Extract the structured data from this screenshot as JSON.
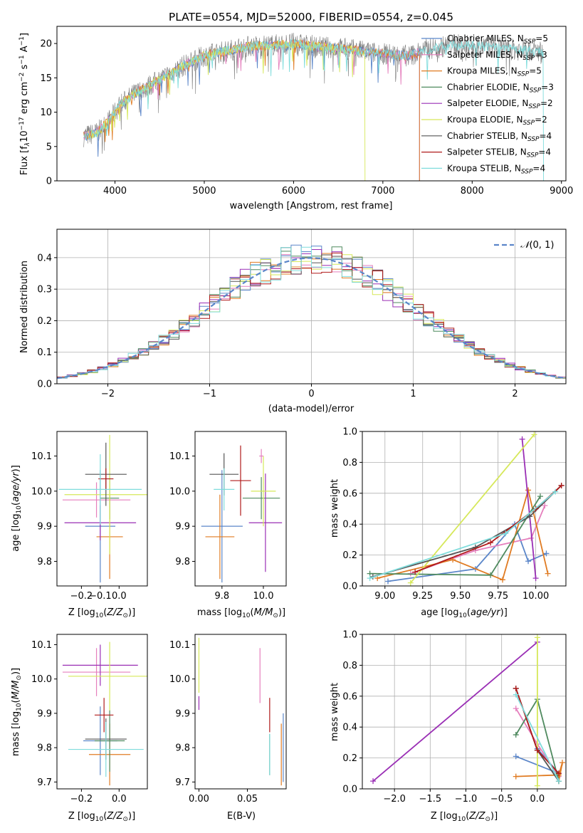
{
  "figure_title": "PLATE=0554, MJD=52000, FIBERID=0554, z=0.045",
  "colors": {
    "Chabrier MILES": "#5b86c9",
    "Salpeter MILES": "#e57fbd",
    "Kroupa MILES": "#e07b22",
    "Chabrier ELODIE": "#4f8a5f",
    "Salpeter ELODIE": "#9a2fb5",
    "Kroupa ELODIE": "#d6e85a",
    "Chabrier STELIB": "#555555",
    "Salpeter STELIB": "#b01a1a",
    "Kroupa STELIB": "#7fdcdc"
  },
  "chart_data": [
    {
      "id": "spectrum",
      "type": "line",
      "title": "PLATE=0554, MJD=52000, FIBERID=0554, z=0.045",
      "xlabel": "wavelength [Angstrom, rest frame]",
      "ylabel_parts": [
        "Flux [f",
        "λ",
        "10",
        "−17",
        " erg cm",
        "−2",
        " s",
        "−1",
        " A",
        "−1",
        "]"
      ],
      "xlim": [
        3350,
        9050
      ],
      "ylim": [
        0,
        22.5
      ],
      "xticks": [
        4000,
        5000,
        6000,
        7000,
        8000,
        9000
      ],
      "yticks": [
        0,
        5,
        10,
        15,
        20
      ],
      "legend_position": "right",
      "legend": [
        {
          "label": "Chabrier MILES, N",
          "sub": "SSP",
          "suffix": "=5"
        },
        {
          "label": "Salpeter MILES, N",
          "sub": "SSP",
          "suffix": "=3"
        },
        {
          "label": "Kroupa MILES, N",
          "sub": "SSP",
          "suffix": "=5"
        },
        {
          "label": "Chabrier ELODIE, N",
          "sub": "SSP",
          "suffix": "=3"
        },
        {
          "label": "Salpeter ELODIE, N",
          "sub": "SSP",
          "suffix": "=2"
        },
        {
          "label": "Kroupa ELODIE, N",
          "sub": "SSP",
          "suffix": "=2"
        },
        {
          "label": "Chabrier STELIB, N",
          "sub": "SSP",
          "suffix": "=4"
        },
        {
          "label": "Salpeter STELIB, N",
          "sub": "SSP",
          "suffix": "=4"
        },
        {
          "label": "Kroupa STELIB, N",
          "sub": "SSP",
          "suffix": "=4"
        }
      ],
      "continuum_points": [
        [
          3650,
          6.5
        ],
        [
          3800,
          7
        ],
        [
          3950,
          9
        ],
        [
          4050,
          11
        ],
        [
          4200,
          12.5
        ],
        [
          4400,
          14
        ],
        [
          4600,
          15.5
        ],
        [
          4800,
          17
        ],
        [
          5000,
          18.2
        ],
        [
          5200,
          18.8
        ],
        [
          5500,
          19.6
        ],
        [
          5800,
          19.8
        ],
        [
          6000,
          20
        ],
        [
          6300,
          19.5
        ],
        [
          6600,
          19.2
        ],
        [
          6800,
          18.8
        ],
        [
          7000,
          18.5
        ],
        [
          7300,
          18.2
        ],
        [
          7500,
          19.2
        ],
        [
          7800,
          19.8
        ],
        [
          8100,
          19.6
        ],
        [
          8400,
          19.2
        ],
        [
          8800,
          18.8
        ]
      ],
      "model_endpoints": [
        {
          "name": "Chabrier MILES",
          "xmin": 3650,
          "xmax": 7410
        },
        {
          "name": "Salpeter MILES",
          "xmin": 3650,
          "xmax": 7410
        },
        {
          "name": "Kroupa MILES",
          "xmin": 3650,
          "xmax": 7410
        },
        {
          "name": "Kroupa ELODIE",
          "xmin": 3700,
          "xmax": 6800
        },
        {
          "name": "Kroupa STELIB",
          "xmin": 3650,
          "xmax": 8800
        }
      ]
    },
    {
      "id": "residuals",
      "type": "histogram",
      "xlabel": "(data-model)/error",
      "ylabel": "Normed distribution",
      "xlim": [
        -2.5,
        2.5
      ],
      "ylim": [
        0,
        0.49
      ],
      "xticks": [
        -2,
        -1,
        0,
        1,
        2
      ],
      "yticks": [
        0.0,
        0.1,
        0.2,
        0.3,
        0.4
      ],
      "grid": true,
      "legend_position": "top-right",
      "reference_curve": {
        "name": "N(0,1)",
        "label_italic": "𝒩",
        "label_rest": "(0, 1)",
        "mean": 0,
        "sigma": 1
      },
      "bin_width": 0.1
    },
    {
      "id": "age_vs_Z",
      "type": "errorbar",
      "xlabel": "Z [log10(Z/Z☉)]",
      "ylabel": "age  [log10(age/yr)]",
      "xlim": [
        -0.33,
        0.15
      ],
      "ylim": [
        9.73,
        10.17
      ],
      "xticks": [
        -0.2,
        -0.1,
        0.0
      ],
      "yticks": [
        9.8,
        9.9,
        10.0,
        10.1
      ],
      "grid": false,
      "points": [
        {
          "name": "Chabrier MILES",
          "x": -0.1,
          "xerr": 0.08,
          "y": 9.9,
          "yerr": 0.16
        },
        {
          "name": "Salpeter MILES",
          "x": -0.12,
          "xerr": 0.18,
          "y": 9.975,
          "yerr": 0.05
        },
        {
          "name": "Kroupa MILES",
          "x": -0.05,
          "xerr": 0.07,
          "y": 9.87,
          "yerr": 0.12
        },
        {
          "name": "Chabrier ELODIE",
          "x": -0.05,
          "xerr": 0.05,
          "y": 9.98,
          "yerr": 0.06
        },
        {
          "name": "Salpeter ELODIE",
          "x": -0.1,
          "xerr": 0.19,
          "y": 9.91,
          "yerr": 0.05
        },
        {
          "name": "Kroupa ELODIE",
          "x": -0.05,
          "xerr": 0.24,
          "y": 9.99,
          "yerr": 0.17
        },
        {
          "name": "Chabrier STELIB",
          "x": -0.07,
          "xerr": 0.11,
          "y": 10.048,
          "yerr": 0.09
        },
        {
          "name": "Salpeter STELIB",
          "x": -0.07,
          "xerr": 0.04,
          "y": 10.035,
          "yerr": 0.03
        },
        {
          "name": "Kroupa STELIB",
          "x": -0.1,
          "xerr": 0.22,
          "y": 10.005,
          "yerr": 0.1
        }
      ]
    },
    {
      "id": "age_vs_mass",
      "type": "errorbar",
      "xlabel": "mass [log10(M/M☉)]",
      "ylabel": "",
      "xlim": [
        9.67,
        10.11
      ],
      "ylim": [
        9.73,
        10.17
      ],
      "xticks": [
        9.8,
        10.0
      ],
      "yticks": [
        9.8,
        9.9,
        10.0,
        10.1
      ],
      "grid": false,
      "points": [
        {
          "name": "Chabrier MILES",
          "x": 9.8,
          "xerr": 0.1,
          "y": 9.9,
          "yerr": 0.16
        },
        {
          "name": "Kroupa MILES",
          "x": 9.79,
          "xerr": 0.07,
          "y": 9.87,
          "yerr": 0.12
        },
        {
          "name": "Chabrier STELIB",
          "x": 9.81,
          "xerr": 0.07,
          "y": 10.048,
          "yerr": 0.06
        },
        {
          "name": "Kroupa STELIB",
          "x": 9.81,
          "xerr": 0.05,
          "y": 10.005,
          "yerr": 0.06
        },
        {
          "name": "Salpeter STELIB",
          "x": 9.89,
          "xerr": 0.05,
          "y": 10.03,
          "yerr": 0.1
        },
        {
          "name": "Chabrier ELODIE",
          "x": 9.99,
          "xerr": 0.09,
          "y": 9.98,
          "yerr": 0.06
        },
        {
          "name": "Salpeter ELODIE",
          "x": 10.01,
          "xerr": 0.08,
          "y": 9.91,
          "yerr": 0.14
        },
        {
          "name": "Kroupa ELODIE",
          "x": 10.0,
          "xerr": 0.06,
          "y": 10.0,
          "yerr": 0.1
        },
        {
          "name": "Salpeter MILES",
          "x": 9.99,
          "xerr": 0.01,
          "y": 10.1,
          "yerr": 0.02
        }
      ]
    },
    {
      "id": "massweight_vs_age",
      "type": "line",
      "xlabel": "age  [log10(age/yr)]",
      "ylabel": "mass weight",
      "xlim": [
        8.85,
        10.2
      ],
      "ylim": [
        0,
        1.0
      ],
      "xticks": [
        9.0,
        9.25,
        9.5,
        9.75,
        10.0
      ],
      "yticks": [
        0.0,
        0.2,
        0.4,
        0.6,
        0.8,
        1.0
      ],
      "grid": true,
      "series": [
        {
          "name": "Chabrier MILES",
          "x": [
            9.02,
            9.6,
            9.86,
            9.95,
            10.07
          ],
          "y": [
            0.03,
            0.11,
            0.4,
            0.16,
            0.21
          ]
        },
        {
          "name": "Salpeter MILES",
          "x": [
            9.17,
            9.6,
            9.97,
            10.06
          ],
          "y": [
            0.08,
            0.23,
            0.31,
            0.52
          ]
        },
        {
          "name": "Kroupa MILES",
          "x": [
            8.95,
            9.45,
            9.78,
            9.95,
            10.08
          ],
          "y": [
            0.05,
            0.17,
            0.04,
            0.62,
            0.08
          ]
        },
        {
          "name": "Chabrier ELODIE",
          "x": [
            8.9,
            9.7,
            10.03
          ],
          "y": [
            0.08,
            0.07,
            0.58
          ]
        },
        {
          "name": "Salpeter ELODIE",
          "x": [
            9.91,
            10.0
          ],
          "y": [
            0.95,
            0.05
          ]
        },
        {
          "name": "Kroupa ELODIE",
          "x": [
            9.17,
            9.99
          ],
          "y": [
            0.02,
            0.98
          ]
        },
        {
          "name": "Chabrier STELIB",
          "x": [
            8.92,
            9.6,
            9.96,
            10.17
          ],
          "y": [
            0.06,
            0.25,
            0.45,
            0.65
          ]
        },
        {
          "name": "Salpeter STELIB",
          "x": [
            9.2,
            9.7,
            10.0,
            10.17
          ],
          "y": [
            0.09,
            0.28,
            0.5,
            0.65
          ]
        },
        {
          "name": "Kroupa STELIB",
          "x": [
            8.9,
            9.8,
            10.13
          ],
          "y": [
            0.05,
            0.34,
            0.61
          ]
        }
      ]
    },
    {
      "id": "mass_vs_Z",
      "type": "errorbar",
      "xlabel": "Z [log10(Z/Z☉)]",
      "ylabel": "mass [log10(M/M☉)]",
      "xlim": [
        -0.33,
        0.15
      ],
      "ylim": [
        9.68,
        10.13
      ],
      "xticks": [
        -0.2,
        0.0
      ],
      "yticks": [
        9.7,
        9.8,
        9.9,
        10.0,
        10.1
      ],
      "grid": false,
      "points": [
        {
          "name": "Chabrier MILES",
          "x": -0.1,
          "xerr": 0.09,
          "y": 9.82,
          "yerr": 0.1
        },
        {
          "name": "Salpeter MILES",
          "x": -0.12,
          "xerr": 0.18,
          "y": 10.02,
          "yerr": 0.07
        },
        {
          "name": "Kroupa MILES",
          "x": -0.05,
          "xerr": 0.11,
          "y": 9.78,
          "yerr": 0.09
        },
        {
          "name": "Chabrier ELODIE",
          "x": -0.05,
          "xerr": 0.08,
          "y": 9.82,
          "yerr": 0.09
        },
        {
          "name": "Salpeter ELODIE",
          "x": -0.1,
          "xerr": 0.2,
          "y": 10.04,
          "yerr": 0.06
        },
        {
          "name": "Kroupa ELODIE",
          "x": -0.05,
          "xerr": 0.22,
          "y": 10.008,
          "yerr": 0.1
        },
        {
          "name": "Chabrier STELIB",
          "x": -0.07,
          "xerr": 0.11,
          "y": 9.825,
          "yerr": 0.06
        },
        {
          "name": "Salpeter STELIB",
          "x": -0.08,
          "xerr": 0.05,
          "y": 9.895,
          "yerr": 0.05
        },
        {
          "name": "Kroupa STELIB",
          "x": -0.07,
          "xerr": 0.2,
          "y": 9.795,
          "yerr": 0.08
        }
      ]
    },
    {
      "id": "mass_vs_ebv",
      "type": "errorbar",
      "xlabel": "E(B-V)",
      "ylabel": "",
      "xlim": [
        -0.004,
        0.09
      ],
      "ylim": [
        9.68,
        10.13
      ],
      "xticks": [
        0.0,
        0.05
      ],
      "yticks": [
        9.7,
        9.8,
        9.9,
        10.0,
        10.1
      ],
      "grid": false,
      "points": [
        {
          "name": "Kroupa ELODIE",
          "x": 0.0,
          "xerr": 0,
          "y": 10.04,
          "yerr": 0.08
        },
        {
          "name": "Salpeter ELODIE",
          "x": 0.0,
          "xerr": 0,
          "y": 9.93,
          "yerr": 0.02
        },
        {
          "name": "Salpeter MILES",
          "x": 0.063,
          "xerr": 0,
          "y": 10.01,
          "yerr": 0.08
        },
        {
          "name": "Salpeter STELIB",
          "x": 0.073,
          "xerr": 0,
          "y": 9.895,
          "yerr": 0.05
        },
        {
          "name": "Chabrier ELODIE",
          "x": 0.073,
          "xerr": 0,
          "y": 9.78,
          "yerr": 0.06
        },
        {
          "name": "Kroupa STELIB",
          "x": 0.073,
          "xerr": 0,
          "y": 9.78,
          "yerr": 0.06
        },
        {
          "name": "Kroupa MILES",
          "x": 0.085,
          "xerr": 0,
          "y": 9.78,
          "yerr": 0.09
        },
        {
          "name": "Chabrier MILES",
          "x": 0.087,
          "xerr": 0,
          "y": 9.8,
          "yerr": 0.1
        }
      ]
    },
    {
      "id": "massweight_vs_Z",
      "type": "line",
      "xlabel": "Z [log10(Z/Z☉)]",
      "ylabel": "mass weight",
      "xlim": [
        -2.45,
        0.4
      ],
      "ylim": [
        0,
        1.0
      ],
      "xticks": [
        -2.0,
        -1.5,
        -1.0,
        -0.5,
        0.0
      ],
      "yticks": [
        0.0,
        0.2,
        0.4,
        0.6,
        0.8,
        1.0
      ],
      "grid": true,
      "series": [
        {
          "name": "Chabrier MILES",
          "x": [
            -0.3,
            0.3,
            0.0
          ],
          "y": [
            0.21,
            0.1,
            0.26
          ]
        },
        {
          "name": "Salpeter MILES",
          "x": [
            -0.3,
            0.0,
            0.3
          ],
          "y": [
            0.52,
            0.29,
            0.08
          ]
        },
        {
          "name": "Kroupa MILES",
          "x": [
            -0.3,
            0.3,
            0.35,
            0.3
          ],
          "y": [
            0.08,
            0.09,
            0.17,
            0.05
          ]
        },
        {
          "name": "Chabrier ELODIE",
          "x": [
            -0.3,
            0.0,
            0.3
          ],
          "y": [
            0.35,
            0.58,
            0.05
          ]
        },
        {
          "name": "Salpeter ELODIE",
          "x": [
            -2.3,
            0.0
          ],
          "y": [
            0.05,
            0.95
          ]
        },
        {
          "name": "Kroupa ELODIE",
          "x": [
            0.0,
            0.0
          ],
          "y": [
            0.02,
            0.98
          ]
        },
        {
          "name": "Chabrier STELIB",
          "x": [
            -0.3,
            0.0,
            0.3
          ],
          "y": [
            0.65,
            0.25,
            0.05
          ]
        },
        {
          "name": "Salpeter STELIB",
          "x": [
            -0.3,
            0.0,
            0.3
          ],
          "y": [
            0.65,
            0.25,
            0.1
          ]
        },
        {
          "name": "Kroupa STELIB",
          "x": [
            -0.3,
            0.3
          ],
          "y": [
            0.61,
            0.05
          ]
        }
      ]
    }
  ]
}
